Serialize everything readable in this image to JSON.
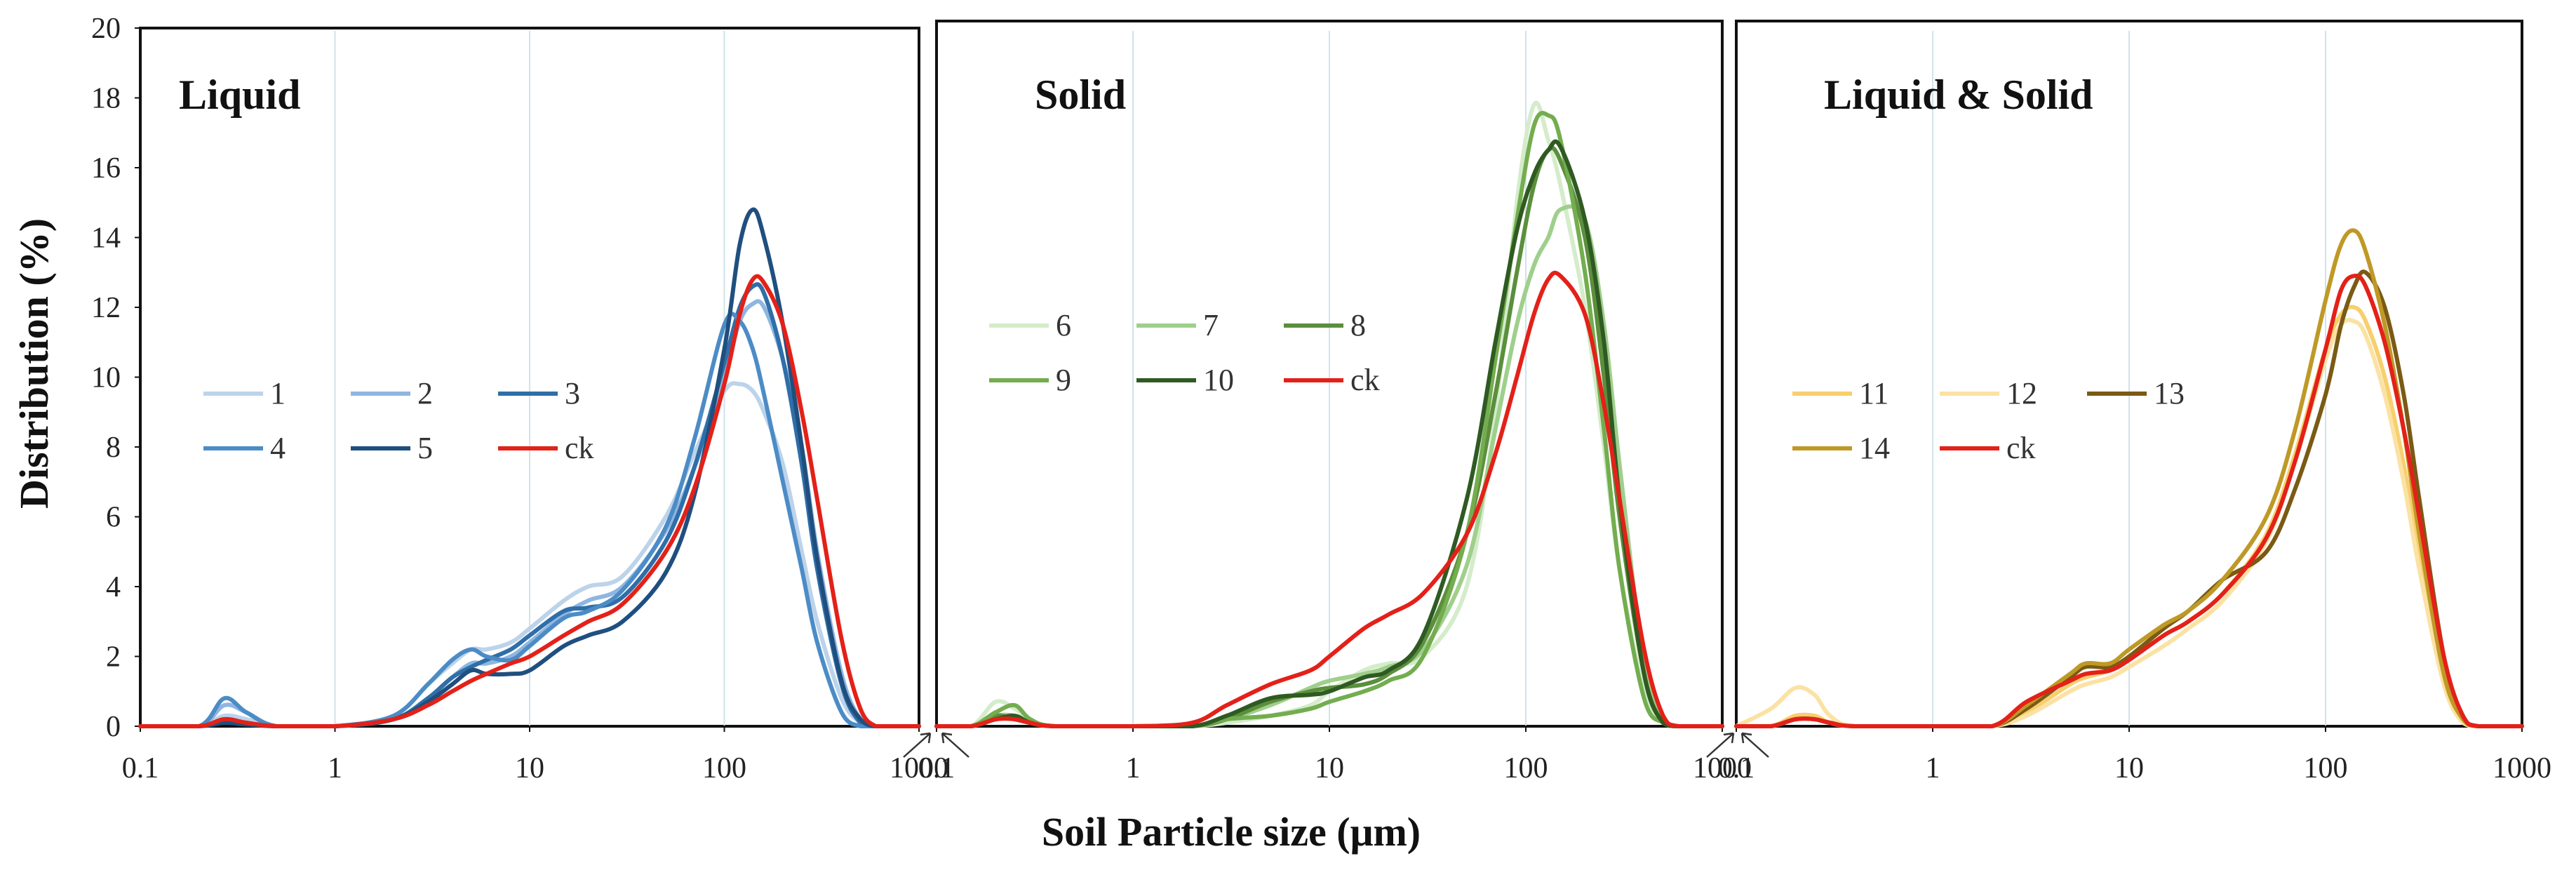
{
  "y_axis_label": "Distribution (%)",
  "x_axis_label": "Soil Particle size (μm)",
  "y_ticks": [
    "0",
    "2",
    "4",
    "6",
    "8",
    "10",
    "12",
    "14",
    "16",
    "18",
    "20"
  ],
  "x_ticks": [
    "0.1",
    "1",
    "10",
    "100",
    "1000"
  ],
  "chart_data": [
    {
      "type": "line",
      "title": "Liquid",
      "xlabel": "Soil Particle size (μm)",
      "ylabel": "Distribution (%)",
      "xscale": "log",
      "xlim": [
        0.1,
        1000
      ],
      "ylim": [
        0,
        20
      ],
      "legend_position": "center-left",
      "legend_columns": 3,
      "series": [
        {
          "name": "1",
          "color": "#bcd3ea",
          "x": [
            0.1,
            0.2,
            0.27,
            0.35,
            0.5,
            1,
            2,
            3,
            4,
            5,
            6,
            8,
            10,
            15,
            20,
            30,
            50,
            70,
            100,
            120,
            140,
            160,
            200,
            250,
            300,
            400,
            500,
            600,
            700,
            1000
          ],
          "y": [
            0,
            0,
            0.3,
            0.2,
            0,
            0,
            0.3,
            1.2,
            1.8,
            2.2,
            2.2,
            2.4,
            2.8,
            3.6,
            4.0,
            4.3,
            6.0,
            7.8,
            9.6,
            9.8,
            9.6,
            9.0,
            7.5,
            5,
            3,
            0.8,
            0.1,
            0,
            0,
            0
          ]
        },
        {
          "name": "2",
          "color": "#8fb6e0",
          "x": [
            0.1,
            0.2,
            0.27,
            0.35,
            0.5,
            1,
            2,
            3,
            4,
            5,
            6,
            8,
            10,
            15,
            20,
            30,
            50,
            70,
            100,
            120,
            140,
            160,
            200,
            250,
            300,
            400,
            500,
            600,
            700,
            1000
          ],
          "y": [
            0,
            0,
            0.6,
            0.4,
            0,
            0,
            0.2,
            0.8,
            1.4,
            1.8,
            1.8,
            2.0,
            2.4,
            3.2,
            3.6,
            4.0,
            5.6,
            7.4,
            10.0,
            11.6,
            12.1,
            12.0,
            10.5,
            8,
            5,
            1.5,
            0.2,
            0,
            0,
            0
          ]
        },
        {
          "name": "3",
          "color": "#2f6ea8",
          "x": [
            0.1,
            0.2,
            0.27,
            0.35,
            0.5,
            1,
            2,
            3,
            4,
            5,
            6,
            8,
            10,
            15,
            20,
            30,
            50,
            70,
            100,
            120,
            140,
            160,
            200,
            250,
            300,
            400,
            500,
            600,
            700,
            1000
          ],
          "y": [
            0,
            0,
            0.2,
            0.1,
            0,
            0,
            0.2,
            0.8,
            1.4,
            1.7,
            1.9,
            2.2,
            2.6,
            3.3,
            3.4,
            3.7,
            5.3,
            7.4,
            10.4,
            12.0,
            12.6,
            12.4,
            10.5,
            7.5,
            4.5,
            1.2,
            0.1,
            0,
            0,
            0
          ]
        },
        {
          "name": "4",
          "color": "#4c8cc6",
          "x": [
            0.1,
            0.2,
            0.27,
            0.35,
            0.5,
            1,
            2,
            3,
            4,
            5,
            6,
            8,
            10,
            15,
            20,
            30,
            50,
            70,
            100,
            120,
            140,
            160,
            200,
            250,
            300,
            400,
            500,
            600,
            700,
            1000
          ],
          "y": [
            0,
            0,
            0.8,
            0.4,
            0,
            0,
            0.3,
            1.2,
            1.9,
            2.2,
            2.0,
            1.9,
            2.3,
            3.1,
            3.3,
            3.9,
            5.7,
            8.2,
            11.5,
            11.6,
            10.8,
            9.5,
            7.0,
            4.5,
            2.4,
            0.4,
            0,
            0,
            0,
            0
          ]
        },
        {
          "name": "5",
          "color": "#1f4f7f",
          "x": [
            0.1,
            0.2,
            0.27,
            0.35,
            0.5,
            1,
            2,
            3,
            4,
            5,
            6,
            8,
            10,
            15,
            20,
            30,
            50,
            70,
            100,
            120,
            140,
            160,
            200,
            250,
            300,
            400,
            500,
            600,
            700,
            1000
          ],
          "y": [
            0,
            0,
            0.1,
            0.05,
            0,
            0,
            0.2,
            0.7,
            1.2,
            1.6,
            1.5,
            1.5,
            1.6,
            2.3,
            2.6,
            3.0,
            4.4,
            6.6,
            10.8,
            13.8,
            14.8,
            14.0,
            11.5,
            8,
            4.8,
            1.3,
            0.2,
            0,
            0,
            0
          ]
        },
        {
          "name": "ck",
          "color": "#e32119",
          "x": [
            0.1,
            0.2,
            0.27,
            0.35,
            0.5,
            1,
            2,
            3,
            4,
            5,
            6,
            8,
            10,
            15,
            20,
            30,
            50,
            70,
            100,
            120,
            140,
            160,
            200,
            250,
            300,
            400,
            500,
            600,
            700,
            1000
          ],
          "y": [
            0,
            0,
            0.2,
            0.1,
            0,
            0,
            0.2,
            0.6,
            1.0,
            1.3,
            1.5,
            1.8,
            2.0,
            2.6,
            3.0,
            3.5,
            5.0,
            6.8,
            9.8,
            11.8,
            12.8,
            12.7,
            11.5,
            9.0,
            6.5,
            2.5,
            0.5,
            0,
            0,
            0
          ]
        }
      ]
    },
    {
      "type": "line",
      "title": "Solid",
      "xlabel": "Soil Particle size (μm)",
      "ylabel": "Distribution (%)",
      "xscale": "log",
      "xlim": [
        0.1,
        1000
      ],
      "ylim": [
        0,
        20
      ],
      "legend_position": "upper-left",
      "legend_columns": 3,
      "series": [
        {
          "name": "6",
          "color": "#d4ecca",
          "x": [
            0.1,
            0.15,
            0.2,
            0.25,
            0.3,
            0.4,
            1,
            2,
            3,
            5,
            8,
            10,
            15,
            20,
            30,
            50,
            70,
            90,
            110,
            130,
            150,
            200,
            250,
            300,
            400,
            500,
            600,
            1000
          ],
          "y": [
            0,
            0,
            0.7,
            0.5,
            0.2,
            0,
            0,
            0,
            0.1,
            0.3,
            0.6,
            1.0,
            1.6,
            1.8,
            2.0,
            4.0,
            9.0,
            15.0,
            17.8,
            16.8,
            15.5,
            12.0,
            8.0,
            4.5,
            1.0,
            0.1,
            0,
            0
          ]
        },
        {
          "name": "7",
          "color": "#9fcf8c",
          "x": [
            0.1,
            0.15,
            0.2,
            0.25,
            0.3,
            0.4,
            1,
            2,
            3,
            5,
            8,
            10,
            15,
            20,
            30,
            50,
            70,
            90,
            110,
            130,
            150,
            200,
            250,
            300,
            400,
            500,
            600,
            1000
          ],
          "y": [
            0,
            0,
            0.3,
            0.3,
            0.1,
            0,
            0,
            0,
            0.2,
            0.6,
            1.1,
            1.3,
            1.5,
            1.7,
            2.2,
            4.6,
            8.5,
            11.5,
            13.2,
            14.0,
            14.8,
            14.5,
            11.5,
            7.5,
            1.8,
            0.2,
            0,
            0
          ]
        },
        {
          "name": "8",
          "color": "#5b8f3c",
          "x": [
            0.1,
            0.15,
            0.2,
            0.25,
            0.3,
            0.4,
            1,
            2,
            3,
            5,
            8,
            10,
            15,
            20,
            30,
            50,
            70,
            90,
            110,
            130,
            150,
            200,
            250,
            300,
            400,
            500,
            600,
            1000
          ],
          "y": [
            0,
            0,
            0.3,
            0.2,
            0.1,
            0,
            0,
            0,
            0.2,
            0.7,
            1.0,
            1.1,
            1.2,
            1.5,
            2.4,
            5.5,
            9.5,
            13.0,
            15.5,
            16.5,
            16.2,
            14.0,
            10.0,
            6.0,
            1.5,
            0.1,
            0,
            0
          ]
        },
        {
          "name": "9",
          "color": "#73ad4f",
          "x": [
            0.1,
            0.15,
            0.2,
            0.25,
            0.3,
            0.4,
            1,
            2,
            3,
            5,
            8,
            10,
            15,
            20,
            30,
            50,
            70,
            90,
            110,
            130,
            150,
            200,
            250,
            300,
            400,
            500,
            600,
            1000
          ],
          "y": [
            0,
            0,
            0.4,
            0.6,
            0.2,
            0,
            0,
            0,
            0.2,
            0.3,
            0.5,
            0.7,
            1.0,
            1.3,
            2.0,
            5.5,
            10.5,
            14.5,
            17.2,
            17.5,
            16.8,
            13.0,
            8.5,
            4.5,
            0.8,
            0.1,
            0,
            0
          ]
        },
        {
          "name": "10",
          "color": "#2f5a22",
          "x": [
            0.1,
            0.15,
            0.2,
            0.25,
            0.3,
            0.4,
            1,
            2,
            3,
            5,
            8,
            10,
            15,
            20,
            30,
            50,
            70,
            90,
            110,
            130,
            150,
            200,
            250,
            300,
            400,
            500,
            600,
            1000
          ],
          "y": [
            0,
            0,
            0.2,
            0.3,
            0.1,
            0,
            0,
            0,
            0.3,
            0.8,
            0.9,
            1.0,
            1.4,
            1.6,
            2.6,
            6.5,
            11.0,
            14.2,
            15.8,
            16.5,
            16.6,
            14.5,
            11.0,
            6.5,
            1.5,
            0.1,
            0,
            0
          ]
        },
        {
          "name": "ck",
          "color": "#e32119",
          "x": [
            0.1,
            0.15,
            0.2,
            0.25,
            0.3,
            0.4,
            1,
            2,
            3,
            5,
            8,
            10,
            15,
            20,
            30,
            50,
            70,
            90,
            110,
            130,
            150,
            200,
            250,
            300,
            400,
            500,
            600,
            1000
          ],
          "y": [
            0,
            0,
            0.2,
            0.2,
            0.1,
            0,
            0,
            0.1,
            0.6,
            1.2,
            1.6,
            2.0,
            2.8,
            3.2,
            3.8,
            5.5,
            7.8,
            10.0,
            11.8,
            12.8,
            12.9,
            11.8,
            9.2,
            6.5,
            2.2,
            0.3,
            0,
            0
          ]
        }
      ]
    },
    {
      "type": "line",
      "title": "Liquid & Solid",
      "xlabel": "Soil Particle size (μm)",
      "ylabel": "Distribution (%)",
      "xscale": "log",
      "xlim": [
        0.1,
        1000
      ],
      "ylim": [
        0,
        20
      ],
      "legend_position": "center-left",
      "legend_columns": 3,
      "series": [
        {
          "name": "11",
          "color": "#f7cf6e",
          "x": [
            0.1,
            0.15,
            0.2,
            0.25,
            0.3,
            0.4,
            1,
            2,
            3,
            5,
            6,
            8,
            10,
            15,
            20,
            30,
            50,
            70,
            100,
            120,
            140,
            160,
            200,
            250,
            300,
            400,
            500,
            600,
            1000
          ],
          "y": [
            0,
            0,
            0.3,
            0.3,
            0.1,
            0,
            0,
            0,
            0.4,
            1.2,
            1.4,
            1.6,
            1.9,
            2.6,
            3.0,
            3.8,
            5.5,
            7.8,
            10.8,
            11.8,
            12.0,
            11.6,
            10.0,
            7.5,
            5.0,
            1.5,
            0.2,
            0,
            0
          ]
        },
        {
          "name": "12",
          "color": "#fbe2a4",
          "x": [
            0.1,
            0.15,
            0.2,
            0.25,
            0.3,
            0.4,
            1,
            2,
            3,
            5,
            6,
            8,
            10,
            15,
            20,
            30,
            50,
            70,
            100,
            120,
            140,
            160,
            200,
            250,
            300,
            400,
            500,
            600,
            1000
          ],
          "y": [
            0,
            0.5,
            1.1,
            0.9,
            0.3,
            0,
            0,
            0,
            0.3,
            1.0,
            1.2,
            1.4,
            1.7,
            2.3,
            2.8,
            3.6,
            5.3,
            7.6,
            10.5,
            11.5,
            11.6,
            11.2,
            9.5,
            7.0,
            4.5,
            1.2,
            0.1,
            0,
            0
          ]
        },
        {
          "name": "13",
          "color": "#7a5a14",
          "x": [
            0.1,
            0.15,
            0.2,
            0.25,
            0.3,
            0.4,
            1,
            2,
            3,
            5,
            6,
            8,
            10,
            15,
            20,
            30,
            50,
            70,
            100,
            120,
            140,
            160,
            200,
            250,
            300,
            400,
            500,
            600,
            1000
          ],
          "y": [
            0,
            0,
            0.2,
            0.2,
            0.1,
            0,
            0,
            0,
            0.5,
            1.4,
            1.7,
            1.7,
            2.0,
            2.8,
            3.3,
            4.2,
            5.0,
            6.8,
            9.5,
            11.5,
            12.6,
            13.0,
            12.0,
            9.5,
            6.5,
            2.0,
            0.3,
            0,
            0
          ]
        },
        {
          "name": "14",
          "color": "#bf9926",
          "x": [
            0.1,
            0.15,
            0.2,
            0.25,
            0.3,
            0.4,
            1,
            2,
            3,
            5,
            6,
            8,
            10,
            15,
            20,
            30,
            50,
            70,
            100,
            120,
            140,
            160,
            200,
            250,
            300,
            400,
            500,
            600,
            1000
          ],
          "y": [
            0,
            0,
            0.2,
            0.2,
            0.1,
            0,
            0,
            0,
            0.6,
            1.5,
            1.8,
            1.8,
            2.2,
            2.9,
            3.3,
            4.2,
            6.0,
            8.5,
            12.2,
            13.8,
            14.2,
            13.6,
            11.5,
            8.5,
            5.5,
            1.5,
            0.2,
            0,
            0
          ]
        },
        {
          "name": "ck",
          "color": "#e32119",
          "x": [
            0.1,
            0.15,
            0.2,
            0.25,
            0.3,
            0.4,
            1,
            2,
            3,
            5,
            6,
            8,
            10,
            15,
            20,
            30,
            50,
            70,
            100,
            120,
            140,
            160,
            200,
            250,
            300,
            400,
            500,
            600,
            1000
          ],
          "y": [
            0,
            0,
            0.2,
            0.2,
            0.1,
            0,
            0,
            0,
            0.7,
            1.3,
            1.5,
            1.6,
            1.9,
            2.6,
            3.0,
            3.8,
            5.4,
            7.6,
            10.8,
            12.5,
            12.9,
            12.6,
            11.0,
            8.5,
            6.0,
            2.0,
            0.3,
            0,
            0
          ]
        }
      ]
    }
  ]
}
